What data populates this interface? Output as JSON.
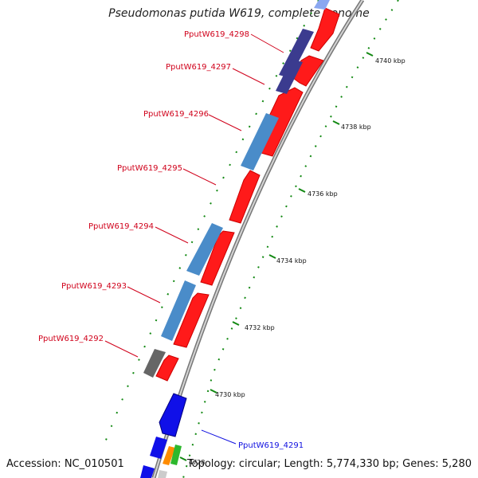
{
  "title": "Pseudomonas putida W619, complete genome",
  "accession": "Accession: NC_010501",
  "topology": "Topology: circular; Length: 5,774,330 bp; Genes: 5,280",
  "scale_labels": [
    "4740 kbp",
    "4738 kbp",
    "4736 kbp",
    "4734 kbp",
    "4732 kbp",
    "4730 kbp",
    "4728"
  ],
  "genes": [
    {
      "name": "PputW619_4298",
      "color": "#d0021b"
    },
    {
      "name": "PputW619_4297",
      "color": "#d0021b"
    },
    {
      "name": "PputW619_4296",
      "color": "#d0021b"
    },
    {
      "name": "PputW619_4295",
      "color": "#d0021b"
    },
    {
      "name": "PputW619_4294",
      "color": "#d0021b"
    },
    {
      "name": "PputW619_4293",
      "color": "#d0021b"
    },
    {
      "name": "PputW619_4292",
      "color": "#d0021b"
    },
    {
      "name": "PputW619_4291",
      "color": "#1010e0"
    }
  ],
  "colors": {
    "cds_forward": "#ff0000",
    "cds_blue": "#4a8cc9",
    "cds_darkblue": "#3b3b8f",
    "cds_grey": "#666666",
    "cds_strong_blue": "#0000ee",
    "scale_tick": "#118811",
    "backbone": "#999999"
  }
}
